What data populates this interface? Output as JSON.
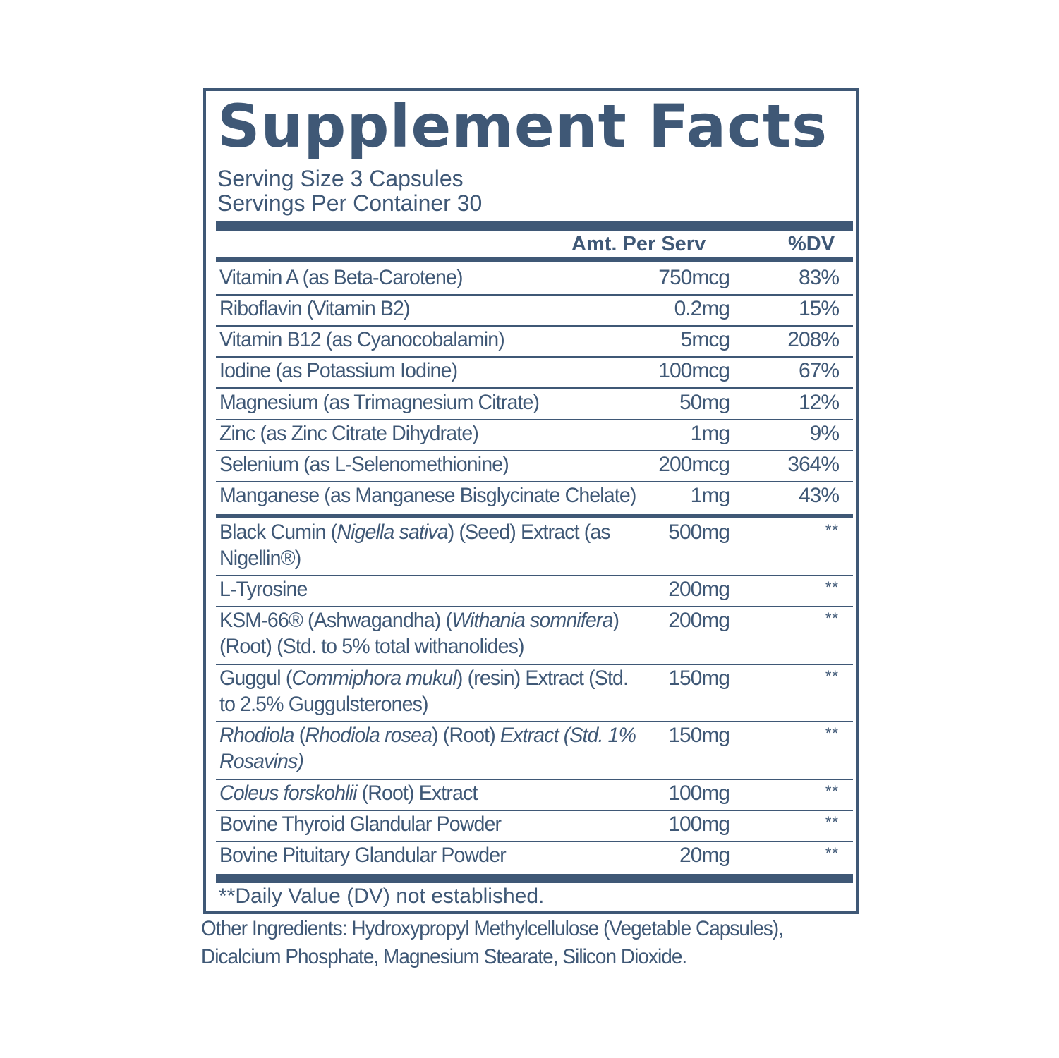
{
  "title": "Supplement Facts",
  "serving_size": "Serving Size 3 Capsules",
  "servings_per_container": "Servings Per Container 30",
  "headers": {
    "amount": "Amt. Per Serv",
    "dv": "%DV"
  },
  "vitamins_minerals": [
    {
      "name": "Vitamin A (as Beta-Carotene)",
      "amount": "750mcg",
      "dv": "83%"
    },
    {
      "name": "Riboflavin (Vitamin B2)",
      "amount": "0.2mg",
      "dv": "15%"
    },
    {
      "name": "Vitamin B12 (as Cyanocobalamin)",
      "amount": "5mcg",
      "dv": "208%"
    },
    {
      "name": "Iodine (as Potassium Iodine)",
      "amount": "100mcg",
      "dv": "67%"
    },
    {
      "name": "Magnesium (as Trimagnesium Citrate)",
      "amount": "50mg",
      "dv": "12%"
    },
    {
      "name": "Zinc (as Zinc Citrate Dihydrate)",
      "amount": "1mg",
      "dv": "9%"
    },
    {
      "name": "Selenium (as L-Selenomethionine)",
      "amount": "200mcg",
      "dv": "364%"
    },
    {
      "name": "Manganese (as Manganese Bisglycinate Chelate)",
      "amount": "1mg",
      "dv": "43%"
    }
  ],
  "botanicals": [
    {
      "name_parts": [
        [
          "Black Cumin (",
          false
        ],
        [
          "Nigella sativa",
          true
        ],
        [
          ") (Seed) Extract (as Nigellin®)",
          false
        ]
      ],
      "amount": "500mg",
      "dv": "**"
    },
    {
      "name_parts": [
        [
          "L-Tyrosine",
          false
        ]
      ],
      "amount": "200mg",
      "dv": "**"
    },
    {
      "name_parts": [
        [
          "KSM-66® (Ashwagandha) (",
          false
        ],
        [
          "Withania somnifera",
          true
        ],
        [
          ") (Root) (Std. to 5% total withanolides)",
          false
        ]
      ],
      "amount": "200mg",
      "dv": "**"
    },
    {
      "name_parts": [
        [
          "Guggul (",
          false
        ],
        [
          "Commiphora mukul",
          true
        ],
        [
          ") (resin) Extract (Std. to 2.5% Guggulsterones)",
          false
        ]
      ],
      "amount": "150mg",
      "dv": "**"
    },
    {
      "name_parts": [
        [
          "Rhodiola",
          true
        ],
        [
          " (",
          false
        ],
        [
          "Rhodiola rosea",
          true
        ],
        [
          ") (Root) ",
          false
        ],
        [
          "Extract (Std. 1% Rosavins)",
          true
        ]
      ],
      "amount": "150mg",
      "dv": "**"
    },
    {
      "name_parts": [
        [
          "Coleus forskohlii",
          true
        ],
        [
          " (Root) Extract",
          false
        ]
      ],
      "amount": "100mg",
      "dv": "**"
    },
    {
      "name_parts": [
        [
          "Bovine Thyroid Glandular Powder",
          false
        ]
      ],
      "amount": "100mg",
      "dv": "**"
    },
    {
      "name_parts": [
        [
          "Bovine Pituitary Glandular Powder",
          false
        ]
      ],
      "amount": "20mg",
      "dv": "**"
    }
  ],
  "footnote": "**Daily Value (DV) not established.",
  "other_ingredients": "Other Ingredients: Hydroxypropyl Methylcellulose (Vegetable Capsules), Dicalcium Phosphate, Magnesium Stearate, Silicon Dioxide."
}
